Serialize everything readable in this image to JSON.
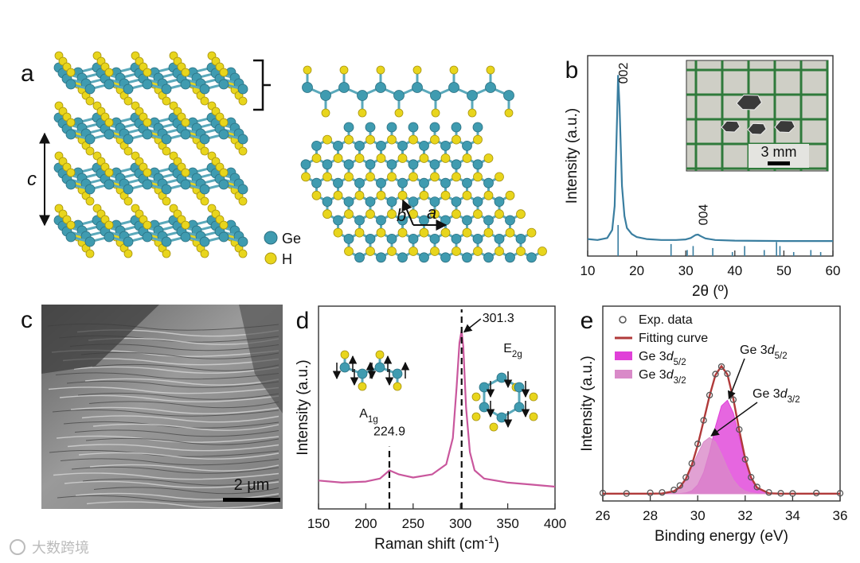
{
  "structure": {
    "panel": "a",
    "stacking_axis": "c",
    "lattice_vectors": [
      "b",
      "a"
    ],
    "atoms": [
      "Ge",
      "H"
    ]
  },
  "sem": {
    "panel": "c",
    "scale_bar": "2 μm"
  },
  "watermark": "大数跨境",
  "chart_data": [
    {
      "type": "line",
      "panel": "b",
      "xlabel": "2θ (º)",
      "ylabel": "Intensity (a.u.)",
      "xlim": [
        10,
        60
      ],
      "xticks": [
        10,
        20,
        30,
        40,
        50,
        60
      ],
      "ylim": [
        0,
        100
      ],
      "color": "#3a7ea0",
      "x": [
        10,
        12,
        14,
        15,
        15.5,
        16,
        16.2,
        16.5,
        17,
        17.5,
        18,
        19,
        20,
        22,
        25,
        28,
        30,
        31,
        32,
        32.5,
        33,
        34,
        36,
        40,
        50,
        60
      ],
      "values": [
        8.5,
        8,
        9,
        13,
        25,
        70,
        90,
        75,
        35,
        20,
        14,
        11,
        9.5,
        8.5,
        8,
        8,
        8.3,
        9,
        10.5,
        10.7,
        10,
        8.8,
        8,
        7.7,
        7.5,
        7.5
      ],
      "reference": {
        "x": [
          16.2,
          27,
          30.3,
          31.5,
          35.5,
          39.5,
          42,
          46,
          48.5,
          49.2,
          52,
          55.5,
          57.5
        ],
        "values": [
          15.5,
          6,
          3,
          5,
          4,
          2,
          5,
          3,
          7,
          5,
          2,
          3,
          2
        ]
      },
      "annotations": [
        {
          "text": "002",
          "x": 16.2
        },
        {
          "text": "004",
          "x": 32.5
        }
      ],
      "inset_scale_bar": "3 mm"
    },
    {
      "type": "line",
      "panel": "d",
      "xlabel": [
        {
          "text": "Raman shift (cm"
        },
        {
          "text": "-1",
          "style": "sup"
        },
        {
          "text": ")"
        }
      ],
      "ylabel": "Intensity (a.u.)",
      "xlim": [
        150,
        400
      ],
      "xticks": [
        150,
        200,
        250,
        300,
        350,
        400
      ],
      "ylim": [
        0,
        100
      ],
      "color": "#c9579d",
      "x": [
        150,
        175,
        200,
        215,
        225,
        235,
        250,
        270,
        285,
        292,
        296,
        299,
        301.3,
        303,
        306,
        310,
        315,
        325,
        350,
        375,
        400
      ],
      "values": [
        14,
        13,
        13.5,
        15,
        19,
        17,
        15.5,
        17,
        22,
        35,
        60,
        82,
        88,
        80,
        50,
        28,
        19,
        15,
        13,
        12,
        11
      ],
      "peaks": [
        224.9,
        301.3
      ],
      "modes": [
        [
          {
            "text": "A"
          },
          {
            "text": "1g",
            "style": "sub"
          }
        ],
        [
          {
            "text": "E"
          },
          {
            "text": "2g",
            "style": "sub"
          }
        ]
      ]
    },
    {
      "type": "line",
      "panel": "e",
      "xlabel": "Binding energy (eV)",
      "ylabel": "Intensity (a.u.)",
      "xlim": [
        26,
        36
      ],
      "xticks": [
        26,
        28,
        30,
        32,
        34,
        36
      ],
      "ylim": [
        -3.5,
        90
      ],
      "x": [
        26,
        27,
        28,
        28.5,
        29,
        29.25,
        29.5,
        29.75,
        30,
        30.25,
        30.5,
        30.75,
        31,
        31.25,
        31.5,
        31.75,
        32,
        32.25,
        32.5,
        33,
        33.5,
        34,
        35,
        36
      ],
      "series": [
        {
          "name": [
            {
              "text": "Exp. data"
            }
          ],
          "style": "scatter",
          "color": "#555555",
          "values": [
            0.3,
            0.1,
            0.4,
            0.6,
            1.8,
            3.9,
            7.8,
            14.5,
            23.9,
            35.2,
            47.3,
            57.4,
            61.0,
            57.6,
            45.1,
            30.8,
            16.5,
            7.9,
            3.2,
            0.6,
            0.2,
            0.1,
            0.3,
            0.2
          ]
        },
        {
          "name": [
            {
              "text": "Fitting curve"
            }
          ],
          "style": "line",
          "color": "#b03a3a",
          "values": [
            0,
            0,
            0,
            0.1,
            1.2,
            3.2,
            7.1,
            13.8,
            23.3,
            34.9,
            47.0,
            57.0,
            61.2,
            57.2,
            45.5,
            30.4,
            16.8,
            7.7,
            2.9,
            0.2,
            0,
            0,
            0,
            0
          ]
        },
        {
          "name": [
            {
              "text": "Ge 3"
            },
            {
              "text": "d",
              "style": "italic"
            },
            {
              "text": "5/2",
              "style": "sub"
            }
          ],
          "style": "area",
          "color": "#e040d8",
          "values": [
            0,
            0,
            0,
            0,
            0,
            0.1,
            0.4,
            1.4,
            4.2,
            10.1,
            20.0,
            32.2,
            42.1,
            44.8,
            38.8,
            27.3,
            15.6,
            7.3,
            2.8,
            0.2,
            0,
            0,
            0,
            0
          ]
        },
        {
          "name": [
            {
              "text": "Ge 3"
            },
            {
              "text": "d",
              "style": "italic"
            },
            {
              "text": "3/2",
              "style": "sub"
            }
          ],
          "style": "area",
          "color": "#d98ac8",
          "values": [
            0,
            0,
            0,
            0.1,
            1.2,
            3.1,
            6.7,
            12.4,
            19.1,
            24.8,
            27,
            24.8,
            19.1,
            12.4,
            6.7,
            3.1,
            1.2,
            0.4,
            0.1,
            0,
            0,
            0,
            0,
            0
          ]
        }
      ]
    }
  ]
}
